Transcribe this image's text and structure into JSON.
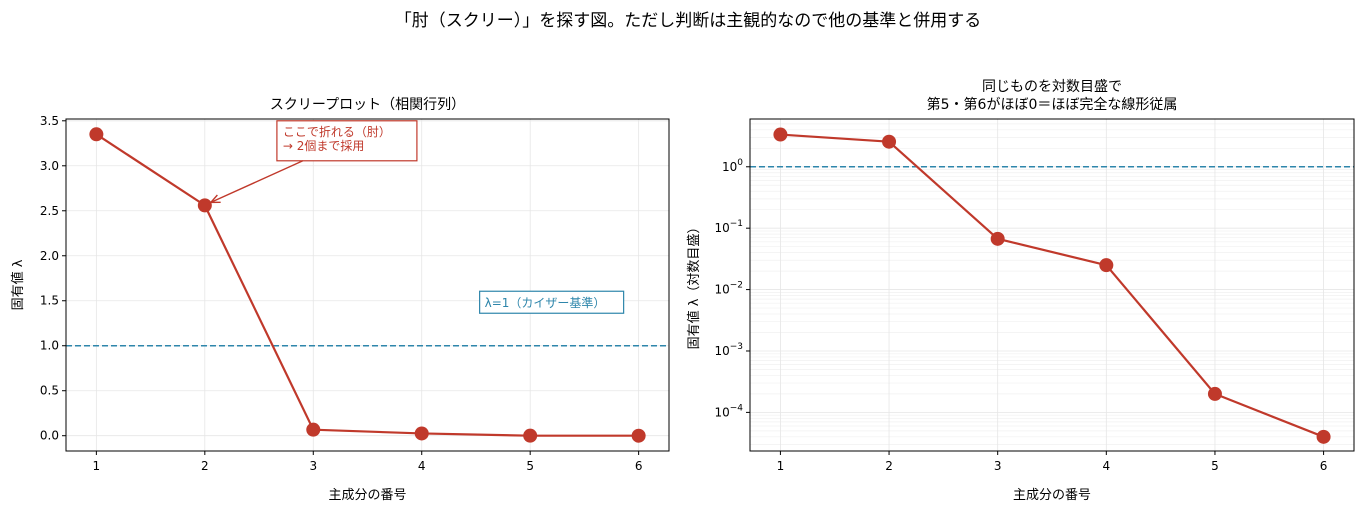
{
  "figure": {
    "suptitle": "「肘（スクリー）」を探す図。ただし判断は主観的なので他の基準と併用する"
  },
  "colors": {
    "series": "#c0392b",
    "reference": "#2e86ab",
    "grid": "#e6e6e6"
  },
  "chart_data": [
    {
      "type": "line",
      "title": "スクリープロット（相関行列）",
      "xlabel": "主成分の番号",
      "ylabel": "固有値 λ",
      "x": [
        1,
        2,
        3,
        4,
        5,
        6
      ],
      "y": [
        3.35,
        2.56,
        0.067,
        0.025,
        0.0002,
        4e-05
      ],
      "xlim": [
        0.72,
        6.28
      ],
      "ylim": [
        -0.17,
        3.52
      ],
      "xticks": [
        1,
        2,
        3,
        4,
        5,
        6
      ],
      "yticks": [
        0.0,
        0.5,
        1.0,
        1.5,
        2.0,
        2.5,
        3.0,
        3.5
      ],
      "ytick_labels": [
        "0.0",
        "0.5",
        "1.0",
        "1.5",
        "2.0",
        "2.5",
        "3.0",
        "3.5"
      ],
      "yscale": "linear",
      "grid": true,
      "reference_line": {
        "y": 1.0,
        "label": "λ=1（カイザー基準）",
        "label_x": 4.58,
        "label_y": 1.45
      },
      "annotation": {
        "lines": [
          "ここで折れる（肘）",
          "→ 2個まで採用"
        ],
        "target": [
          2,
          2.56
        ],
        "text_x": 2.72,
        "text_y": 3.3
      }
    },
    {
      "type": "line",
      "title_lines": [
        "同じものを対数目盛で",
        "第5・第6がほぼ0＝ほぼ完全な線形従属"
      ],
      "xlabel": "主成分の番号",
      "ylabel": "固有値 λ（対数目盛）",
      "x": [
        1,
        2,
        3,
        4,
        5,
        6
      ],
      "y": [
        3.35,
        2.56,
        0.067,
        0.025,
        0.0002,
        4e-05
      ],
      "xlim": [
        0.72,
        6.28
      ],
      "ylim": [
        2.35e-05,
        6.0
      ],
      "xticks": [
        1,
        2,
        3,
        4,
        5,
        6
      ],
      "yticks": [
        0.0001,
        0.001,
        0.01,
        0.1,
        1
      ],
      "ytick_labels": [
        {
          "base": "10",
          "exp": "−4"
        },
        {
          "base": "10",
          "exp": "−3"
        },
        {
          "base": "10",
          "exp": "−2"
        },
        {
          "base": "10",
          "exp": "−1"
        },
        {
          "base": "10",
          "exp": "0"
        }
      ],
      "yscale": "log",
      "grid": true,
      "reference_line": {
        "y": 1.0
      }
    }
  ]
}
